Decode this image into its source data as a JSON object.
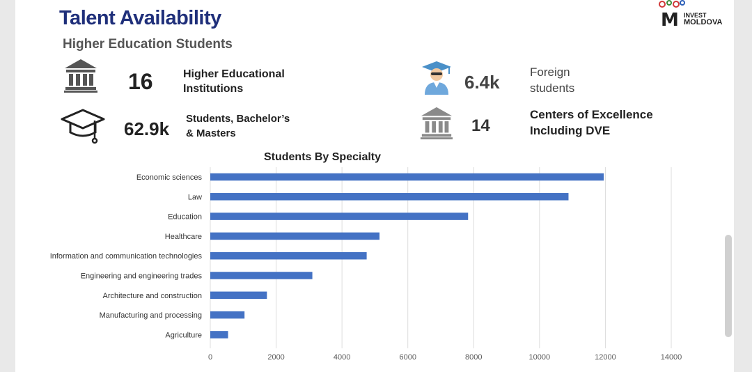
{
  "header": {
    "title": "Talent Availability",
    "subtitle": "Higher Education Students"
  },
  "logo": {
    "mark": "M",
    "line1": "INVEST",
    "line2": "MOLDOVA"
  },
  "stats": [
    {
      "value": "16",
      "label": "Higher Educational\nInstitutions",
      "icon": "institution-icon"
    },
    {
      "value": "6.4k",
      "label": "Foreign\nstudents",
      "icon": "graduate-student-icon"
    },
    {
      "value": "62.9k",
      "label": "Students, Bachelor’s\n& Masters",
      "icon": "graduation-cap-icon"
    },
    {
      "value": "14",
      "label": "Centers of Excellence\nIncluding DVE",
      "icon": "institution-icon"
    }
  ],
  "colors": {
    "title": "#1f2f7a",
    "bar": "#4472c4"
  },
  "chart_data": {
    "type": "bar",
    "orientation": "horizontal",
    "title": "Students By Specialty",
    "xlabel": "",
    "ylabel": "",
    "categories": [
      "Economic sciences",
      "Law",
      "Education",
      "Healthcare",
      "Information and communication technologies",
      "Engineering and engineering trades",
      "Architecture and construction",
      "Manufacturing and processing",
      "Agriculture"
    ],
    "values": [
      11950,
      10880,
      7830,
      5140,
      4750,
      3100,
      1720,
      1040,
      540
    ],
    "xlim": [
      0,
      14000
    ],
    "xticks": [
      0,
      2000,
      4000,
      6000,
      8000,
      10000,
      12000,
      14000
    ],
    "grid": "vertical",
    "legend": "none"
  }
}
